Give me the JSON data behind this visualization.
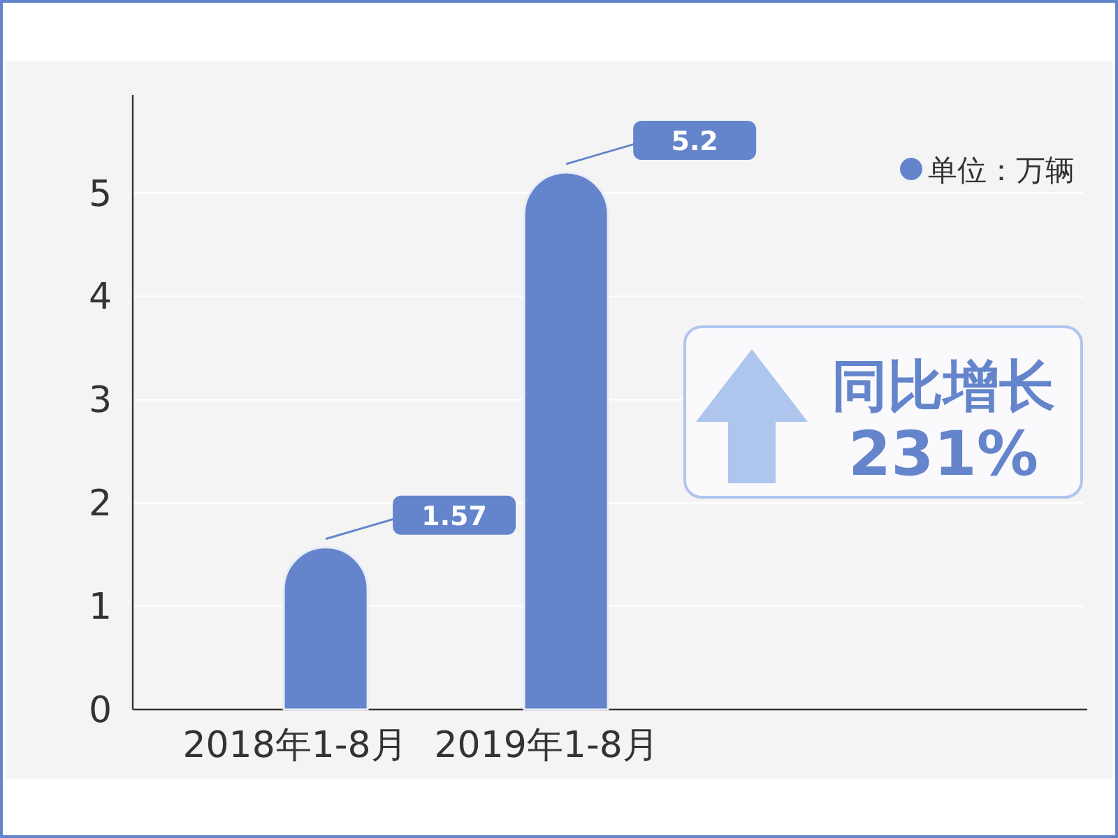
{
  "chart_data": {
    "type": "bar",
    "categories": [
      "2018年1-8月",
      "2019年1-8月"
    ],
    "values": [
      1.57,
      5.2
    ],
    "color": "#6485cb",
    "ylim": [
      0,
      5.95
    ],
    "yticks": [
      0,
      1,
      2,
      3,
      4,
      5
    ],
    "grid": "y",
    "data_labels": true,
    "annotations": [
      "单位：万辆",
      "同比增长",
      "231%"
    ]
  }
}
